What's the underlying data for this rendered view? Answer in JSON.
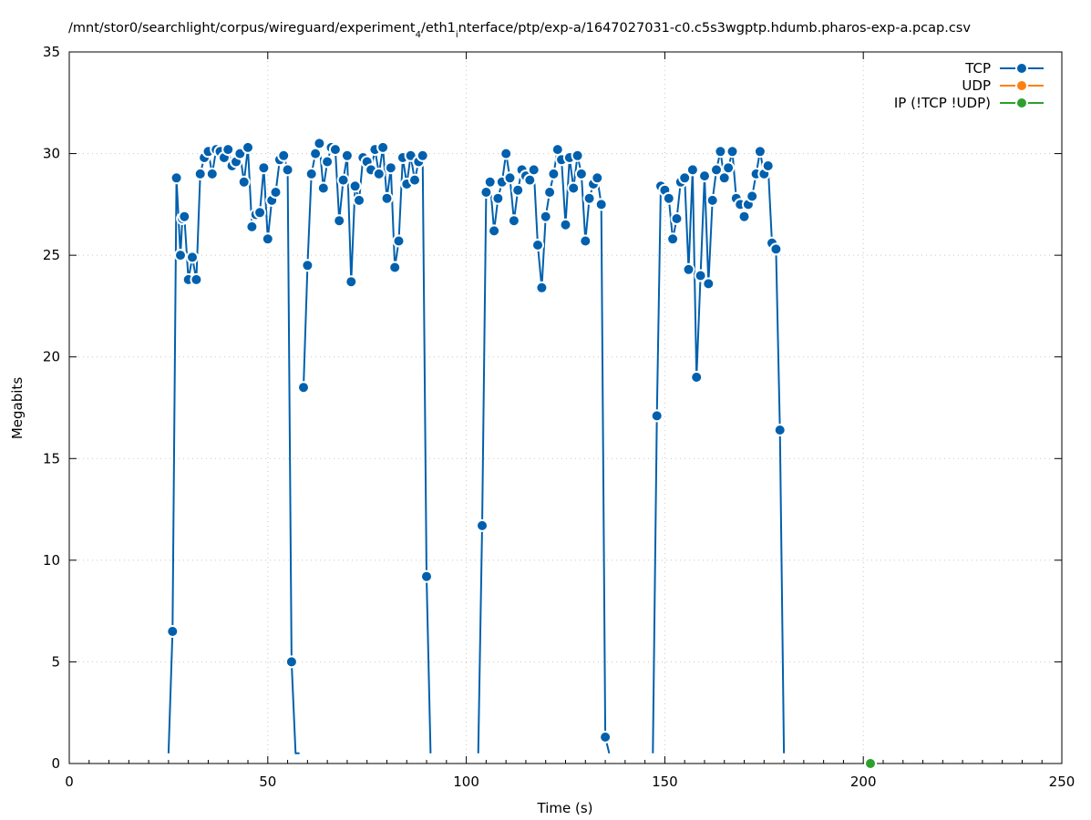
{
  "chart_data": {
    "type": "line",
    "title": "/mnt/stor0/searchlight/corpus/wireguard/experiment",
    "title_sub_1": "4",
    "title_mid": "/eth1",
    "title_sub_2": "i",
    "title_tail": "nterface/ptp/exp-a/1647027031-c0.c5s3wgptp.hdumb.pharos-exp-a.pcap.csv",
    "xlabel": "Time (s)",
    "ylabel": "Megabits",
    "xlim": [
      0,
      250
    ],
    "ylim": [
      0,
      35
    ],
    "x_ticks": [
      0,
      50,
      100,
      150,
      200,
      250
    ],
    "y_ticks": [
      0,
      5,
      10,
      15,
      20,
      25,
      30,
      35
    ],
    "grid": true,
    "legend_position": "top-right",
    "series": [
      {
        "name": "TCP",
        "color": "#0060ad",
        "segments": [
          {
            "x": [
              25,
              26,
              27,
              28,
              28.5,
              29,
              30,
              31,
              32,
              33,
              34,
              35,
              36,
              37,
              38,
              39,
              40,
              41,
              42,
              43,
              44,
              45,
              46,
              47,
              48,
              49,
              50,
              51,
              52,
              53,
              54,
              55,
              56,
              57,
              58
            ],
            "y": [
              0.5,
              6.5,
              28.8,
              25.0,
              26.8,
              26.9,
              23.8,
              24.9,
              23.8,
              29.0,
              29.8,
              30.1,
              29.0,
              30.2,
              30.1,
              29.8,
              30.2,
              29.4,
              29.6,
              30.0,
              28.6,
              30.3,
              26.4,
              27.0,
              27.1,
              29.3,
              25.8,
              27.7,
              28.1,
              29.7,
              29.9,
              29.2,
              5.0,
              0.5,
              0.5
            ]
          },
          {
            "x": [
              59,
              60,
              61,
              62,
              63,
              64,
              65,
              66,
              67,
              68,
              69,
              70,
              71,
              72,
              73,
              74,
              75,
              76,
              77,
              78,
              79,
              80,
              81,
              82,
              83,
              84,
              85,
              86,
              87,
              88,
              89,
              90,
              91
            ],
            "y": [
              18.5,
              24.5,
              29.0,
              30.0,
              30.5,
              28.3,
              29.6,
              30.3,
              30.2,
              26.7,
              28.7,
              29.9,
              23.7,
              28.4,
              27.7,
              29.8,
              29.6,
              29.2,
              30.2,
              29.0,
              30.3,
              27.8,
              29.3,
              24.4,
              25.7,
              29.8,
              28.5,
              29.9,
              28.7,
              29.6,
              29.9,
              9.2,
              0.5
            ]
          },
          {
            "x": [
              103,
              104,
              105,
              106,
              107,
              108,
              109,
              110,
              111,
              112,
              113,
              114,
              115,
              116,
              117,
              118,
              119,
              120,
              121,
              122,
              123,
              124,
              125,
              126,
              127,
              128,
              129,
              130,
              131,
              132,
              133,
              134,
              135,
              136
            ],
            "y": [
              0.5,
              11.7,
              28.1,
              28.6,
              26.2,
              27.8,
              28.6,
              30.0,
              28.8,
              26.7,
              28.2,
              29.2,
              28.9,
              28.7,
              29.2,
              25.5,
              23.4,
              26.9,
              28.1,
              29.0,
              30.2,
              29.7,
              26.5,
              29.8,
              28.3,
              29.9,
              29.0,
              25.7,
              27.8,
              28.5,
              28.8,
              27.5,
              1.3,
              0.5
            ]
          },
          {
            "x": [
              147,
              148,
              149,
              150,
              151,
              152,
              153,
              154,
              155,
              156,
              157,
              158,
              159,
              160,
              161,
              162,
              163,
              164,
              165,
              166,
              167,
              168,
              169,
              170,
              171,
              172,
              173,
              174,
              175,
              176,
              177,
              178,
              179,
              180
            ],
            "y": [
              0.5,
              17.1,
              28.4,
              28.2,
              27.8,
              25.8,
              26.8,
              28.6,
              28.8,
              24.3,
              29.2,
              19.0,
              24.0,
              28.9,
              23.6,
              27.7,
              29.2,
              30.1,
              28.8,
              29.3,
              30.1,
              27.8,
              27.5,
              26.9,
              27.5,
              27.9,
              29.0,
              30.1,
              29.0,
              29.4,
              25.6,
              25.3,
              16.4,
              0.5
            ]
          }
        ]
      },
      {
        "name": "UDP",
        "color": "#ff7f0e",
        "segments": []
      },
      {
        "name": "IP (!TCP  !UDP)",
        "color": "#2ca02c",
        "segments": [
          {
            "x": [
              201.8
            ],
            "y": [
              0.0
            ]
          }
        ]
      }
    ]
  }
}
